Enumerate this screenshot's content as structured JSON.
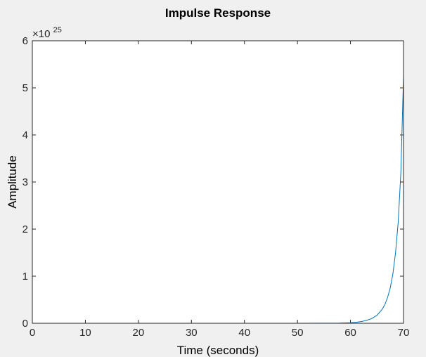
{
  "chart_data": {
    "type": "line",
    "title": "Impulse Response",
    "xlabel": "Time (seconds)",
    "ylabel": "Amplitude",
    "xlim": [
      0,
      70
    ],
    "ylim": [
      0,
      6
    ],
    "x_ticks": [
      0,
      10,
      20,
      30,
      40,
      50,
      60,
      70
    ],
    "y_ticks": [
      0,
      1,
      2,
      3,
      4,
      5,
      6
    ],
    "y_multiplier": {
      "base": "×10",
      "exponent": "25"
    },
    "grid": false,
    "legend": "none",
    "series": [
      {
        "color": "#0072bd",
        "x": [
          0,
          10,
          20,
          30,
          40,
          50,
          58,
          60,
          61,
          62,
          63,
          64,
          65,
          66,
          66.5,
          67,
          67.5,
          68,
          68.5,
          69,
          69.5,
          70
        ],
        "y": [
          0,
          0,
          0,
          0,
          0,
          0,
          0.004,
          0.012,
          0.02,
          0.035,
          0.06,
          0.1,
          0.17,
          0.3,
          0.4,
          0.55,
          0.75,
          1.05,
          1.5,
          2.15,
          3.2,
          5.25
        ]
      }
    ]
  }
}
